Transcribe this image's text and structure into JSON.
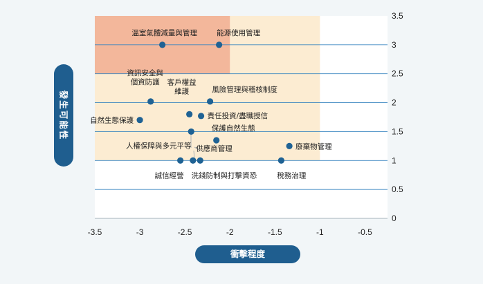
{
  "chart_data": {
    "type": "scatter",
    "xlabel": "衝擊程度",
    "ylabel": "發生可能性",
    "xlim": [
      -3.5,
      -0.25
    ],
    "ylim": [
      0,
      3.5
    ],
    "x_ticks": [
      "-3.5",
      "-3",
      "-2.5",
      "-2",
      "-1.5",
      "-1",
      "-0.5"
    ],
    "y_ticks": [
      "3.5",
      "3",
      "2.5",
      "2",
      "1.5",
      "1",
      "0.5",
      "0"
    ],
    "zones": [
      {
        "name": "light-orange",
        "x": [
          -3.5,
          -1
        ],
        "y": [
          1,
          3.5
        ],
        "color": "#fcecd2"
      },
      {
        "name": "salmon",
        "x": [
          -3.5,
          -2
        ],
        "y": [
          2.5,
          3.5
        ],
        "color": "#f3b79b"
      }
    ],
    "colors": {
      "point": "#1f6294",
      "gridline": "#3a86c0",
      "axis_pill": "#1f5e8f",
      "plot_bg": "#ffffff"
    },
    "points": [
      {
        "label": "溫室氣體減量與管理",
        "x": -2.75,
        "y": 3.0
      },
      {
        "label": "能源使用管理",
        "x": -2.12,
        "y": 3.0
      },
      {
        "label": "資訊安全與 個資防護",
        "x": -2.88,
        "y": 2.02
      },
      {
        "label": "客戶權益 維護",
        "x": -2.45,
        "y": 1.8
      },
      {
        "label": "風險管理與稽核制度",
        "x": -2.22,
        "y": 2.02
      },
      {
        "label": "責任投資/盡職授信",
        "x": -2.32,
        "y": 1.77
      },
      {
        "label": "自然生態保護",
        "x": -3.0,
        "y": 1.7
      },
      {
        "label": "人權保障與多元平等",
        "x": -2.43,
        "y": 1.5
      },
      {
        "label": "保護自然生態",
        "x": -2.15,
        "y": 1.35
      },
      {
        "label": "供應商管理",
        "x": -2.33,
        "y": 1.0
      },
      {
        "label": "廢棄物管理",
        "x": -1.34,
        "y": 1.25
      },
      {
        "label": "誠信經營",
        "x": -2.55,
        "y": 1.0
      },
      {
        "label": "洗錢防制與打擊資恐",
        "x": -2.41,
        "y": 1.0
      },
      {
        "label": "稅務治理",
        "x": -1.43,
        "y": 1.0
      }
    ]
  }
}
